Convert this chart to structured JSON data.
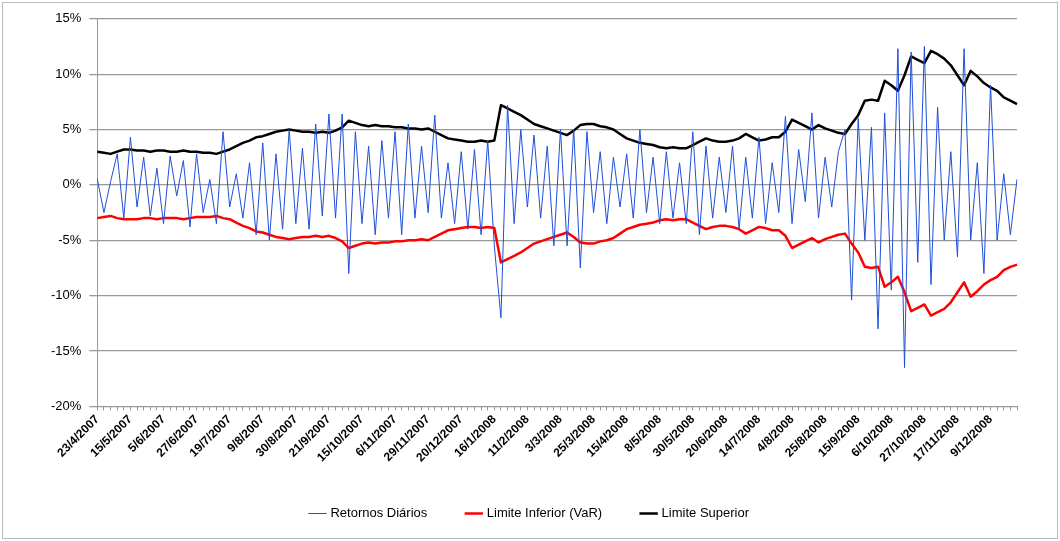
{
  "chart_data": {
    "type": "line",
    "categories": [
      "23/4/2007",
      null,
      null,
      null,
      null,
      "15/5/2007",
      null,
      null,
      null,
      null,
      "5/6/2007",
      null,
      null,
      null,
      null,
      "27/6/2007",
      null,
      null,
      null,
      null,
      "19/7/2007",
      null,
      null,
      null,
      null,
      "9/8/2007",
      null,
      null,
      null,
      null,
      "30/8/2007",
      null,
      null,
      null,
      null,
      "21/9/2007",
      null,
      null,
      null,
      null,
      "15/10/2007",
      null,
      null,
      null,
      null,
      "6/11/2007",
      null,
      null,
      null,
      null,
      "29/11/2007",
      null,
      null,
      null,
      null,
      "20/12/2007",
      null,
      null,
      null,
      null,
      "16/1/2008",
      null,
      null,
      null,
      null,
      "11/2/2008",
      null,
      null,
      null,
      null,
      "3/3/2008",
      null,
      null,
      null,
      null,
      "25/3/2008",
      null,
      null,
      null,
      null,
      "15/4/2008",
      null,
      null,
      null,
      null,
      "8/5/2008",
      null,
      null,
      null,
      null,
      "30/5/2008",
      null,
      null,
      null,
      null,
      "20/6/2008",
      null,
      null,
      null,
      null,
      "14/7/2008",
      null,
      null,
      null,
      null,
      "4/8/2008",
      null,
      null,
      null,
      null,
      "25/8/2008",
      null,
      null,
      null,
      null,
      "15/9/2008",
      null,
      null,
      null,
      null,
      "6/10/2008",
      null,
      null,
      null,
      null,
      "27/10/2008",
      null,
      null,
      null,
      null,
      "17/11/2008",
      null,
      null,
      null,
      null,
      "9/12/2008",
      null,
      null,
      null,
      null
    ],
    "series": [
      {
        "name": "Retornos Diários",
        "color": "#1f4fd8",
        "values": [
          0.5,
          -2.5,
          0.3,
          2.8,
          -3.0,
          4.3,
          -2.0,
          2.5,
          -2.8,
          1.5,
          -3.5,
          2.6,
          -1.0,
          2.2,
          -3.8,
          2.8,
          -2.5,
          0.5,
          -3.5,
          4.8,
          -2.0,
          1.0,
          -3.0,
          2.0,
          -4.5,
          3.8,
          -5.0,
          2.8,
          -4.0,
          5.0,
          -3.5,
          3.3,
          -4.0,
          5.5,
          -2.8,
          6.4,
          -3.0,
          6.4,
          -8.0,
          4.8,
          -3.5,
          3.5,
          -4.5,
          4.0,
          -3.0,
          4.8,
          -4.5,
          5.5,
          -3.0,
          3.5,
          -2.5,
          6.3,
          -3.0,
          2.0,
          -3.5,
          3.0,
          -4.0,
          3.2,
          -4.5,
          4.0,
          -5.5,
          -12.0,
          7.2,
          -3.5,
          5.0,
          -2.0,
          4.5,
          -3.0,
          3.5,
          -5.5,
          5.0,
          -5.5,
          5.0,
          -7.5,
          4.8,
          -2.5,
          3.0,
          -3.5,
          2.5,
          -2.0,
          2.8,
          -3.0,
          5.0,
          -2.5,
          2.5,
          -3.5,
          3.0,
          -3.0,
          2.0,
          -3.5,
          4.8,
          -4.5,
          3.5,
          -3.0,
          2.5,
          -2.5,
          3.5,
          -4.0,
          2.5,
          -3.0,
          4.3,
          -3.5,
          2.0,
          -2.5,
          6.2,
          -3.5,
          3.2,
          -1.5,
          6.5,
          -3.0,
          2.5,
          -2.0,
          3.0,
          5.0,
          -10.4,
          6.0,
          -5.0,
          5.2,
          -13.0,
          6.5,
          -9.5,
          12.3,
          -16.5,
          12.0,
          -7.0,
          12.5,
          -9.0,
          7.0,
          -5.0,
          3.0,
          -6.5,
          12.3,
          -5.0,
          2.0,
          -8.0,
          9.0,
          -5.0,
          1.0,
          -4.5,
          0.5
        ]
      },
      {
        "name": "Limite Inferior (VaR)",
        "color": "#ff0000",
        "values": [
          -3.0,
          -2.9,
          -2.8,
          -3.0,
          -3.1,
          -3.1,
          -3.1,
          -3.0,
          -3.0,
          -3.1,
          -3.0,
          -3.0,
          -3.0,
          -3.1,
          -3.0,
          -2.9,
          -2.9,
          -2.9,
          -2.8,
          -3.0,
          -3.1,
          -3.4,
          -3.7,
          -3.9,
          -4.2,
          -4.3,
          -4.5,
          -4.7,
          -4.8,
          -4.9,
          -4.8,
          -4.7,
          -4.7,
          -4.6,
          -4.7,
          -4.6,
          -4.8,
          -5.1,
          -5.7,
          -5.5,
          -5.3,
          -5.2,
          -5.3,
          -5.2,
          -5.2,
          -5.1,
          -5.1,
          -5.0,
          -5.0,
          -4.9,
          -5.0,
          -4.7,
          -4.4,
          -4.1,
          -4.0,
          -3.9,
          -3.8,
          -3.8,
          -3.9,
          -3.8,
          -3.9,
          -7.0,
          -6.7,
          -6.4,
          -6.1,
          -5.7,
          -5.3,
          -5.1,
          -4.9,
          -4.7,
          -4.5,
          -4.3,
          -4.7,
          -5.2,
          -5.3,
          -5.3,
          -5.1,
          -5.0,
          -4.8,
          -4.4,
          -4.0,
          -3.8,
          -3.6,
          -3.5,
          -3.4,
          -3.2,
          -3.1,
          -3.2,
          -3.1,
          -3.1,
          -3.4,
          -3.7,
          -4.0,
          -3.8,
          -3.7,
          -3.7,
          -3.8,
          -4.0,
          -4.4,
          -4.1,
          -3.8,
          -3.9,
          -4.1,
          -4.1,
          -4.6,
          -5.7,
          -5.4,
          -5.1,
          -4.8,
          -5.2,
          -4.9,
          -4.7,
          -4.5,
          -4.4,
          -5.3,
          -6.1,
          -7.4,
          -7.5,
          -7.4,
          -9.2,
          -8.8,
          -8.3,
          -9.7,
          -11.4,
          -11.1,
          -10.8,
          -11.8,
          -11.5,
          -11.2,
          -10.6,
          -9.7,
          -8.8,
          -10.1,
          -9.6,
          -9.0,
          -8.6,
          -8.3,
          -7.7,
          -7.4,
          -7.2
        ]
      },
      {
        "name": "Limite Superior",
        "color": "#000000",
        "values": [
          3.0,
          2.9,
          2.8,
          3.0,
          3.2,
          3.2,
          3.1,
          3.1,
          3.0,
          3.1,
          3.1,
          3.0,
          3.0,
          3.1,
          3.0,
          3.0,
          2.9,
          2.9,
          2.8,
          3.0,
          3.2,
          3.5,
          3.8,
          4.0,
          4.3,
          4.4,
          4.6,
          4.8,
          4.9,
          5.0,
          4.9,
          4.8,
          4.8,
          4.7,
          4.8,
          4.7,
          4.9,
          5.2,
          5.8,
          5.6,
          5.4,
          5.3,
          5.4,
          5.3,
          5.3,
          5.2,
          5.2,
          5.1,
          5.1,
          5.0,
          5.1,
          4.8,
          4.5,
          4.2,
          4.1,
          4.0,
          3.9,
          3.9,
          4.0,
          3.9,
          4.0,
          7.2,
          6.9,
          6.6,
          6.3,
          5.9,
          5.5,
          5.3,
          5.1,
          4.9,
          4.7,
          4.5,
          4.9,
          5.4,
          5.5,
          5.5,
          5.3,
          5.2,
          5.0,
          4.6,
          4.2,
          4.0,
          3.8,
          3.7,
          3.6,
          3.4,
          3.3,
          3.4,
          3.3,
          3.3,
          3.6,
          3.9,
          4.2,
          4.0,
          3.9,
          3.9,
          4.0,
          4.2,
          4.6,
          4.3,
          4.0,
          4.1,
          4.3,
          4.3,
          4.8,
          5.9,
          5.6,
          5.3,
          5.0,
          5.4,
          5.1,
          4.9,
          4.7,
          4.6,
          5.5,
          6.3,
          7.6,
          7.7,
          7.6,
          9.4,
          9.0,
          8.5,
          9.9,
          11.6,
          11.3,
          11.0,
          12.1,
          11.8,
          11.4,
          10.8,
          9.9,
          9.0,
          10.3,
          9.8,
          9.2,
          8.8,
          8.5,
          7.9,
          7.6,
          7.3
        ]
      }
    ],
    "ylim": [
      -20,
      15
    ],
    "yticks": [
      {
        "value": -20,
        "label": "-20%"
      },
      {
        "value": -15,
        "label": "-15%"
      },
      {
        "value": -10,
        "label": "-10%"
      },
      {
        "value": -5,
        "label": "-5%"
      },
      {
        "value": 0,
        "label": "0%"
      },
      {
        "value": 5,
        "label": "5%"
      },
      {
        "value": 10,
        "label": "10%"
      },
      {
        "value": 15,
        "label": "15%"
      }
    ],
    "grid": "y",
    "legend": "bottom"
  }
}
